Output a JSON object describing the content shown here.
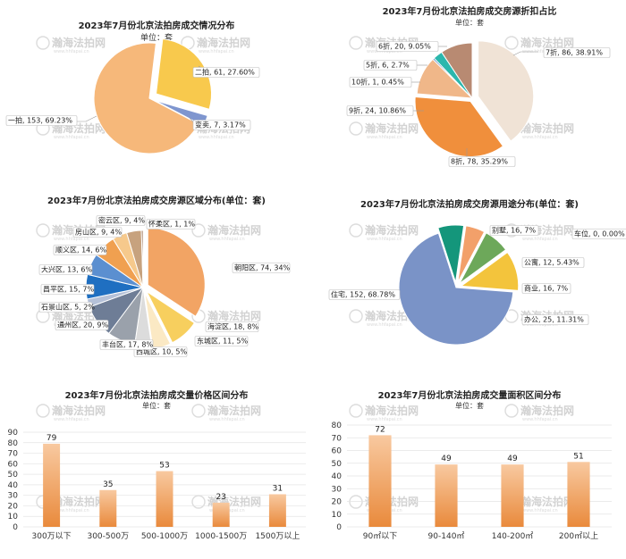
{
  "watermark": {
    "text": "瀚海法拍网",
    "sub": "www.hhfapai.cn"
  },
  "charts": [
    {
      "id": "deal-status",
      "chart_data": {
        "type": "pie",
        "title": "2023年7月份北京法拍房成交情况分布",
        "subtitle": "单位：套",
        "slices": [
          {
            "label": "一拍",
            "value": 153,
            "percent": "69.23%",
            "color": "#f6b87a"
          },
          {
            "label": "二拍",
            "value": 61,
            "percent": "27.60%",
            "color": "#f8c94d"
          },
          {
            "label": "变卖",
            "value": 7,
            "percent": "3.17%",
            "color": "#7f96cf"
          }
        ]
      }
    },
    {
      "id": "discount",
      "chart_data": {
        "type": "pie",
        "title": "2023年7月份北京法拍房成交房源折扣占比",
        "subtitle": "单位：套",
        "slices": [
          {
            "label": "7折",
            "value": 86,
            "percent": "38.91%",
            "color": "#f0e3d6"
          },
          {
            "label": "8折",
            "value": 78,
            "percent": "35.29%",
            "color": "#f08f3c"
          },
          {
            "label": "9折",
            "value": 24,
            "percent": "10.86%",
            "color": "#f0b789"
          },
          {
            "label": "10折",
            "value": 1,
            "percent": "0.45%",
            "color": "#4477b8"
          },
          {
            "label": "5折",
            "value": 6,
            "percent": "2.7%",
            "color": "#2bb7ad"
          },
          {
            "label": "6折",
            "value": 20,
            "percent": "9.05%",
            "color": "#b88a72"
          }
        ]
      }
    },
    {
      "id": "district",
      "chart_data": {
        "type": "pie",
        "title": "2023年7月份北京法拍房成交房源区域分布(单位：套)",
        "slices": [
          {
            "label": "朝阳区",
            "value": 74,
            "percent": "34%",
            "color": "#f2a464"
          },
          {
            "label": "海淀区",
            "value": 18,
            "percent": "8%",
            "color": "#f7cf5e"
          },
          {
            "label": "东城区",
            "value": 11,
            "percent": "5%",
            "color": "#fbe9c4"
          },
          {
            "label": "西城区",
            "value": 10,
            "percent": "5%",
            "color": "#dcdcdc"
          },
          {
            "label": "丰台区",
            "value": 17,
            "percent": "8%",
            "color": "#9aa1ab"
          },
          {
            "label": "通州区",
            "value": 20,
            "percent": "9%",
            "color": "#6e7d96"
          },
          {
            "label": "石景山区",
            "value": 5,
            "percent": "2%",
            "color": "#b5c1d8"
          },
          {
            "label": "昌平区",
            "value": 15,
            "percent": "7%",
            "color": "#1f6fc1"
          },
          {
            "label": "大兴区",
            "value": 13,
            "percent": "6%",
            "color": "#5b8fd0"
          },
          {
            "label": "顺义区",
            "value": 14,
            "percent": "6%",
            "color": "#f0a050"
          },
          {
            "label": "房山区",
            "value": 9,
            "percent": "4%",
            "color": "#f6c98c"
          },
          {
            "label": "密云区",
            "value": 9,
            "percent": "4%",
            "color": "#c7a27e"
          },
          {
            "label": "怀柔区",
            "value": 1,
            "percent": "1%",
            "color": "#8a5a3a"
          }
        ]
      }
    },
    {
      "id": "usage",
      "chart_data": {
        "type": "pie",
        "title": "2023年7月份北京法拍房成交房源用途分布(单位：套)",
        "slices": [
          {
            "label": "住宅",
            "value": 152,
            "percent": "68.78%",
            "color": "#7a93c7"
          },
          {
            "label": "办公",
            "value": 25,
            "percent": "11.31%",
            "color": "#f3c43c"
          },
          {
            "label": "商业",
            "value": 16,
            "percent": "7%",
            "color": "#6da85a"
          },
          {
            "label": "公寓",
            "value": 12,
            "percent": "5.43%",
            "color": "#f2a06a"
          },
          {
            "label": "别墅",
            "value": 16,
            "percent": "7%",
            "color": "#14967b"
          },
          {
            "label": "车位",
            "value": 0,
            "percent": "0.00%",
            "color": "#cccccc"
          }
        ]
      }
    },
    {
      "id": "price-range",
      "chart_data": {
        "type": "bar",
        "title": "2023年7月份北京法拍房成交量价格区间分布",
        "subtitle": "单位：套",
        "categories": [
          "300万以下",
          "300-500万",
          "500-1000万",
          "1000-1500万",
          "1500万以上"
        ],
        "values": [
          79,
          35,
          53,
          23,
          31
        ],
        "ylim": [
          0,
          90
        ],
        "yticks": [
          0,
          10,
          20,
          30,
          40,
          50,
          60,
          70,
          80,
          90
        ],
        "grid": true,
        "color_top": "#f8c9a0",
        "color_bottom": "#e98a3c"
      }
    },
    {
      "id": "area-range",
      "chart_data": {
        "type": "bar",
        "title": "2023年7月份北京法拍房成交量面积区间分布",
        "subtitle": "单位：套",
        "categories": [
          "90㎡以下",
          "90-140㎡",
          "140-200㎡",
          "200㎡以上"
        ],
        "values": [
          72,
          49,
          49,
          51
        ],
        "ylim": [
          0,
          80
        ],
        "yticks": [
          0,
          10,
          20,
          30,
          40,
          50,
          60,
          70,
          80
        ],
        "grid": true,
        "color_top": "#f8c9a0",
        "color_bottom": "#e98a3c"
      }
    }
  ]
}
